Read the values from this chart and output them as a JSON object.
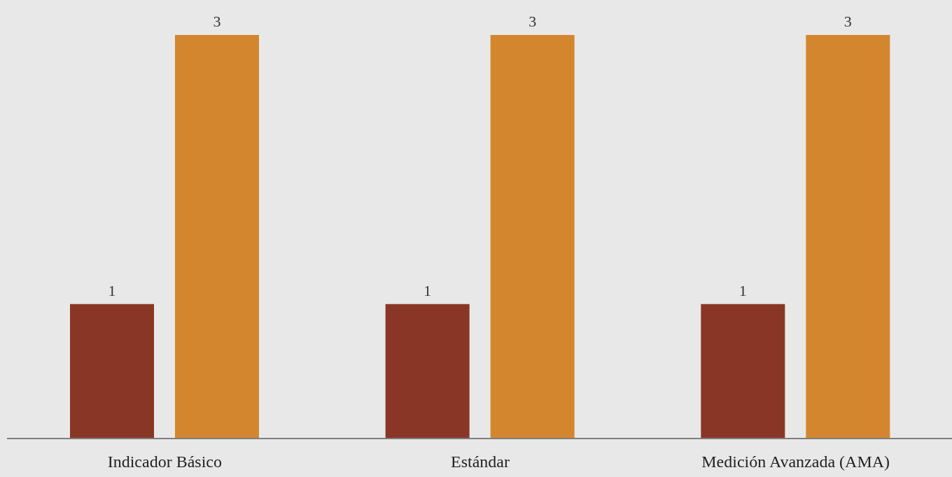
{
  "chart_data": {
    "type": "bar",
    "categories": [
      "Indicador Básico",
      "Estándar",
      "Medición Avanzada (AMA)"
    ],
    "series": [
      {
        "color": "#8a3626",
        "values": [
          1,
          1,
          1
        ]
      },
      {
        "color": "#d4862e",
        "values": [
          3,
          3,
          3
        ]
      }
    ],
    "data_labels": true,
    "grid": false,
    "legend": false,
    "tick_labels": "x"
  }
}
